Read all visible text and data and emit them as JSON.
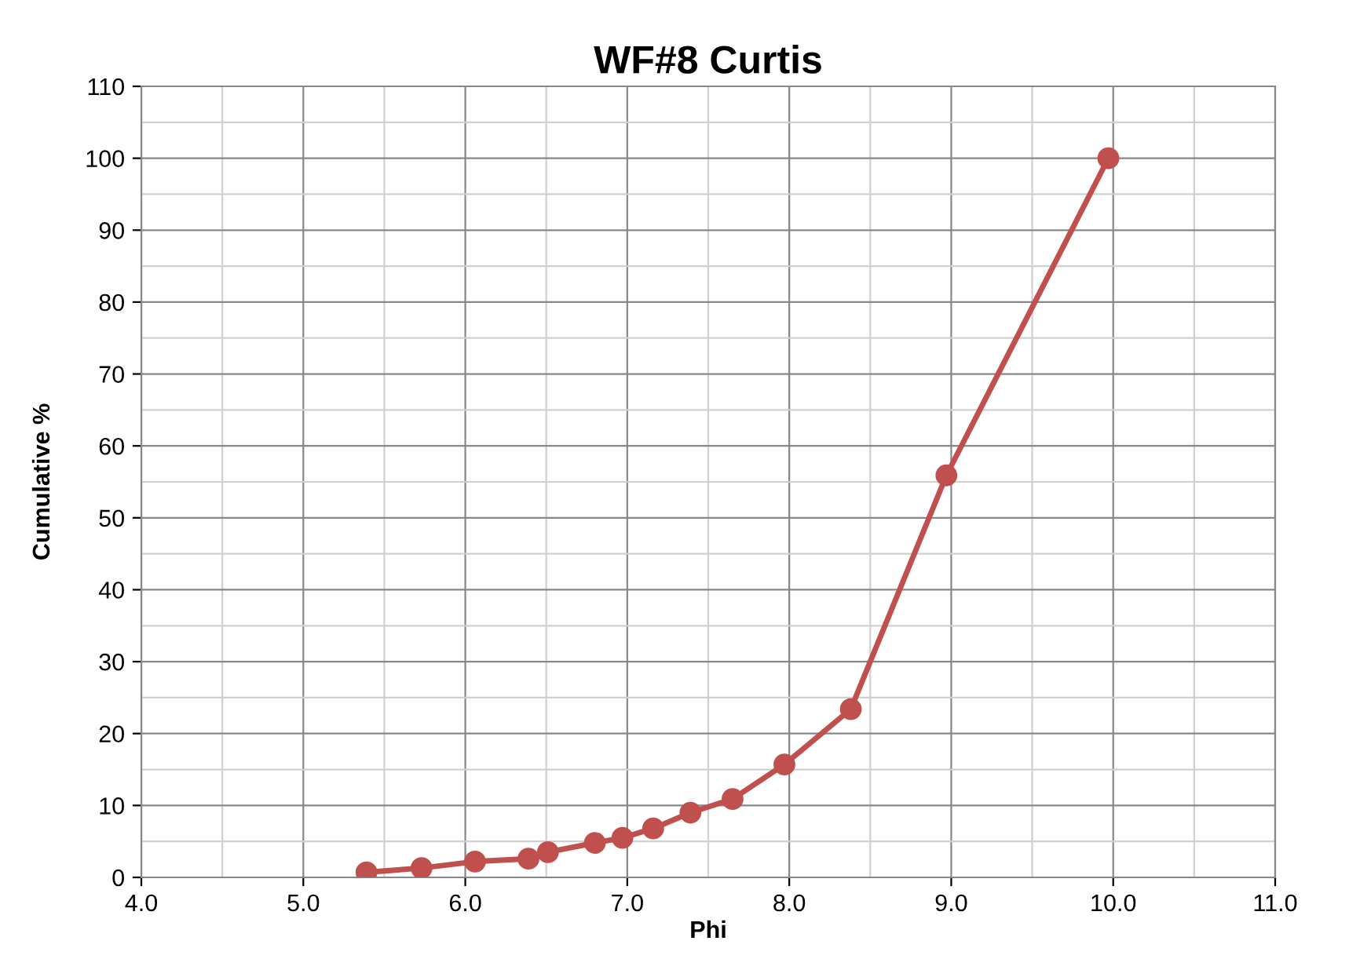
{
  "chart_data": {
    "type": "line",
    "title": "WF#8 Curtis",
    "xlabel": "Phi",
    "ylabel": "Cumulative %",
    "x": [
      5.39,
      5.73,
      6.06,
      6.39,
      6.51,
      6.8,
      6.97,
      7.16,
      7.39,
      7.65,
      7.97,
      8.38,
      8.97,
      9.97
    ],
    "series": [
      {
        "color": "#c0504d",
        "values": [
          0.7,
          1.3,
          2.2,
          2.6,
          3.5,
          4.8,
          5.5,
          6.8,
          9.0,
          10.9,
          15.7,
          23.4,
          55.9,
          100
        ]
      }
    ],
    "xlim": [
      4,
      11
    ],
    "xticks": [
      {
        "value": 4,
        "label": "4.0"
      },
      {
        "value": 5,
        "label": "5.0"
      },
      {
        "value": 6,
        "label": "6.0"
      },
      {
        "value": 7,
        "label": "7.0"
      },
      {
        "value": 8,
        "label": "8.0"
      },
      {
        "value": 9,
        "label": "9.0"
      },
      {
        "value": 10,
        "label": "10.0"
      },
      {
        "value": 11,
        "label": "11.0"
      }
    ],
    "ylim": [
      0,
      110
    ],
    "yticks": [
      0,
      10,
      20,
      30,
      40,
      50,
      60,
      70,
      80,
      90,
      100,
      110
    ],
    "grid": true,
    "marker": "circle",
    "line_style": "solid"
  }
}
